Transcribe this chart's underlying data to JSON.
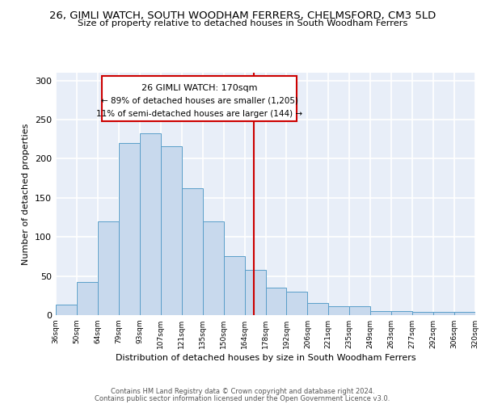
{
  "title_line1": "26, GIMLI WATCH, SOUTH WOODHAM FERRERS, CHELMSFORD, CM3 5LD",
  "title_line2": "Size of property relative to detached houses in South Woodham Ferrers",
  "xlabel": "Distribution of detached houses by size in South Woodham Ferrers",
  "ylabel": "Number of detached properties",
  "bin_labels": [
    "36sqm",
    "50sqm",
    "64sqm",
    "79sqm",
    "93sqm",
    "107sqm",
    "121sqm",
    "135sqm",
    "150sqm",
    "164sqm",
    "178sqm",
    "192sqm",
    "206sqm",
    "221sqm",
    "235sqm",
    "249sqm",
    "263sqm",
    "277sqm",
    "292sqm",
    "306sqm",
    "320sqm"
  ],
  "bar_heights": [
    13,
    42,
    120,
    220,
    232,
    216,
    162,
    120,
    75,
    58,
    35,
    30,
    15,
    11,
    11,
    5,
    5,
    4,
    4,
    4
  ],
  "bar_color": "#c8d9ed",
  "bar_edge_color": "#5a9ec9",
  "annotation_title": "26 GIMLI WATCH: 170sqm",
  "annotation_line2": "← 89% of detached houses are smaller (1,205)",
  "annotation_line3": "11% of semi-detached houses are larger (144) →",
  "annotation_box_color": "#ffffff",
  "annotation_border_color": "#cc0000",
  "vertical_line_color": "#cc0000",
  "footer_line1": "Contains HM Land Registry data © Crown copyright and database right 2024.",
  "footer_line2": "Contains public sector information licensed under the Open Government Licence v3.0.",
  "ylim": [
    0,
    310
  ],
  "yticks": [
    0,
    50,
    100,
    150,
    200,
    250,
    300
  ],
  "background_color": "#e8eef8",
  "grid_color": "#ffffff"
}
